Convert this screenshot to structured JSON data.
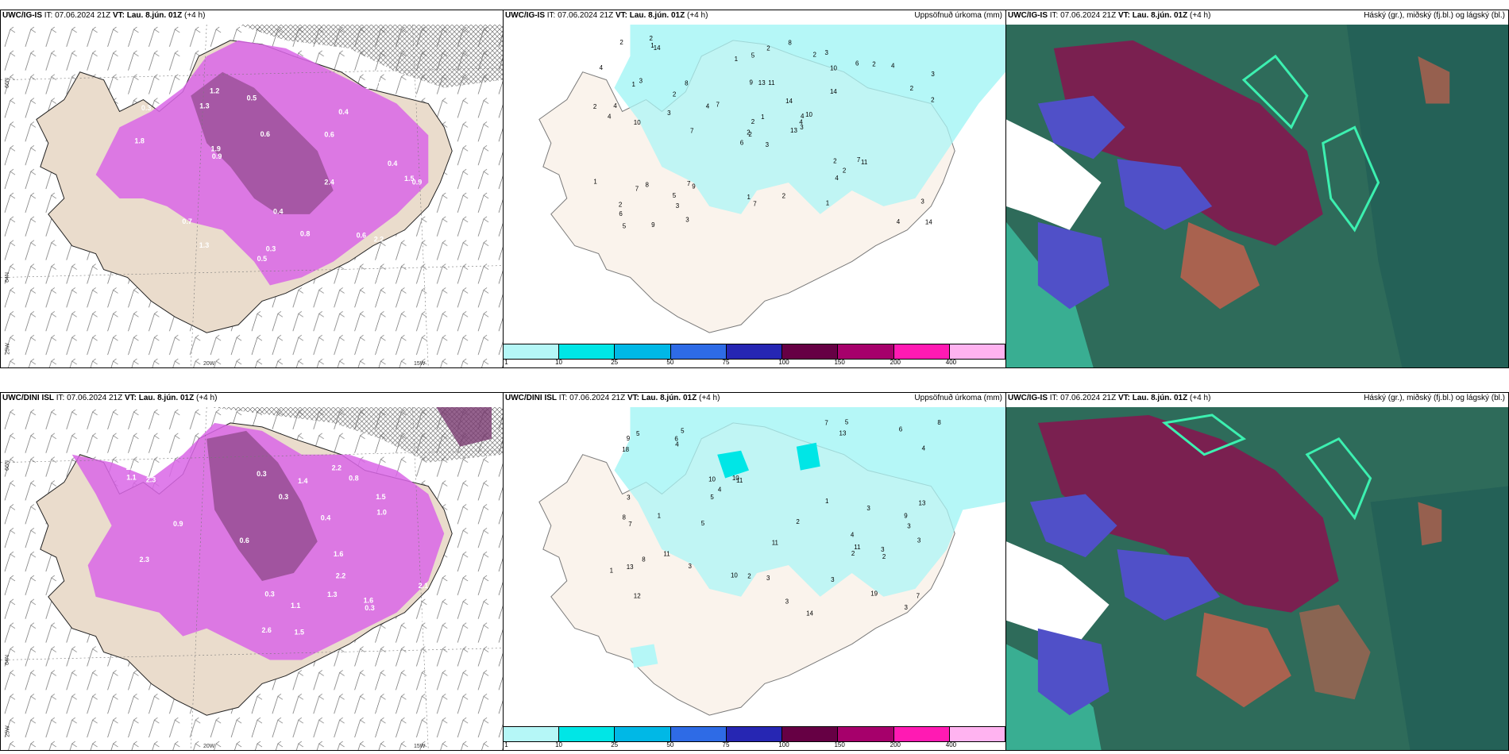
{
  "rows": [
    {
      "left": {
        "model": "UWC/IG-IS",
        "it": "IT: 07.06.2024 21Z",
        "vt_label": "VT:",
        "vt": "Lau. 8.jún. 01Z",
        "lead": "(+4 h)"
      },
      "middle": {
        "model": "UWC/IG-IS",
        "it": "IT: 07.06.2024 21Z",
        "vt_label": "VT:",
        "vt": "Lau. 8.jún. 01Z",
        "lead": "(+4 h)",
        "right_title": "Uppsöfnuð úrkoma (mm)"
      },
      "right": {
        "model": "UWC/IG-IS",
        "it": "IT: 07.06.2024 21Z",
        "vt_label": "VT:",
        "vt": "Lau. 8.jún. 01Z",
        "lead": "(+4 h)",
        "right_title": "Háský (gr.), miðský (fj.bl.) og lágský (bl.)"
      },
      "precip_labels": [
        "3",
        "1",
        "2",
        "2",
        "4",
        "9",
        "3",
        "11",
        "10",
        "13",
        "14",
        "14",
        "10",
        "3",
        "6",
        "14",
        "9",
        "9",
        "14",
        "8",
        "7",
        "6",
        "3",
        "13",
        "10",
        "11",
        "3",
        "5",
        "4",
        "2",
        "2",
        "2",
        "1",
        "2",
        "8",
        "6",
        "7",
        "4",
        "3",
        "7",
        "8",
        "4",
        "3",
        "4",
        "3",
        "2",
        "4",
        "5",
        "7",
        "3",
        "7",
        "2",
        "4",
        "2",
        "1",
        "5",
        "1",
        "2",
        "2",
        "4",
        "2",
        "7",
        "4",
        "2",
        "2",
        "2",
        "2",
        "1",
        "1",
        "1"
      ]
    },
    {
      "left": {
        "model": "UWC/DINI ISL",
        "it": "IT: 07.06.2024 21Z",
        "vt_label": "VT:",
        "vt": "Lau. 8.jún. 01Z",
        "lead": "(+4 h)"
      },
      "middle": {
        "model": "UWC/DINI ISL",
        "it": "IT: 07.06.2024 21Z",
        "vt_label": "VT:",
        "vt": "Lau. 8.jún. 01Z",
        "lead": "(+4 h)",
        "right_title": "Uppsöfnuð úrkoma (mm)"
      },
      "right": {
        "model": "UWC/IG-IS",
        "it": "IT: 07.06.2024 21Z",
        "vt_label": "VT:",
        "vt": "Lau. 8.jún. 01Z",
        "lead": "(+4 h)",
        "right_title": "Háský (gr.), miðský (fj.bl.) og lágský (bl.)"
      },
      "precip_labels": [
        "4",
        "3",
        "12",
        "5",
        "11",
        "19",
        "13",
        "13",
        "10",
        "14",
        "18",
        "8",
        "9",
        "7",
        "10",
        "13",
        "11",
        "2",
        "10",
        "11",
        "8",
        "6",
        "5",
        "3",
        "7",
        "6",
        "11",
        "7",
        "4",
        "3",
        "3",
        "3",
        "4",
        "5",
        "9",
        "2",
        "2",
        "1",
        "3",
        "8",
        "4",
        "5",
        "3",
        "2",
        "3",
        "3",
        "1",
        "5",
        "1",
        "3"
      ]
    }
  ],
  "colorbar": {
    "ticks": [
      "1",
      "10",
      "25",
      "50",
      "75",
      "100",
      "150",
      "200",
      "400"
    ],
    "colors": [
      "#b5f7f7",
      "#00e6e6",
      "#00b8e6",
      "#2e6be6",
      "#2626b3",
      "#660044",
      "#a6006b",
      "#ff1ab3",
      "#ffb3f0"
    ]
  },
  "lat_labels": {
    "n66": "66N",
    "n64": "64N"
  },
  "lon_labels": {
    "w25": "25W",
    "w20": "20W",
    "w15": "15W"
  },
  "precip_rate_labels_top": [
    "0.3",
    "1.3",
    "0.6",
    "0.3",
    "1.3",
    "0.5",
    "2.4",
    "0.9",
    "1.6",
    "0.9",
    "1.5",
    "1.2",
    "0.4",
    "0.7",
    "1.8",
    "1.3",
    "1.9",
    "0.5",
    "2.2",
    "0.8",
    "0.6",
    "0.4",
    "0.6",
    "0.4"
  ],
  "precip_rate_labels_bottom": [
    "0.3",
    "0.3",
    "2.4",
    "1.5",
    "2.6",
    "0.3",
    "1.5",
    "2.2",
    "0.9",
    "2.3",
    "1.6",
    "1.4",
    "1.6",
    "2.3",
    "1.0",
    "0.8",
    "2.1",
    "1.3",
    "1.1",
    "2.2",
    "1.1",
    "0.3",
    "0.4",
    "0.6",
    "1.0"
  ]
}
